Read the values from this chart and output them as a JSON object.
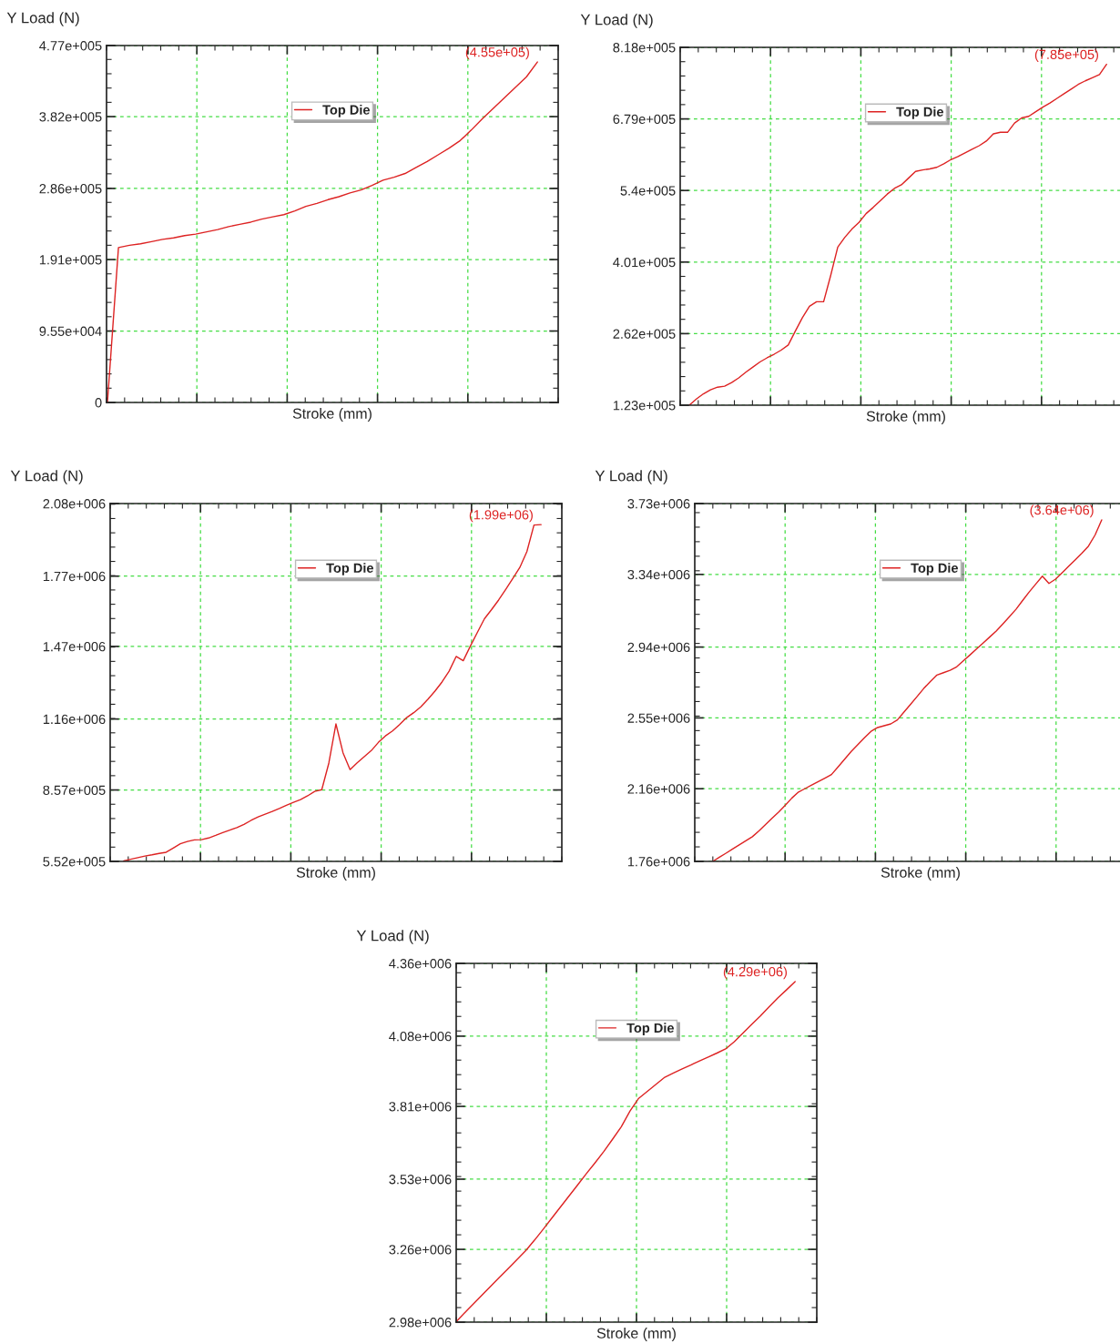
{
  "chart_data": [
    {
      "type": "line",
      "xlabel": "Stroke (mm)",
      "ylabel": "Y Load (N)",
      "categories": [
        null,
        null,
        null,
        null,
        null,
        null,
        null,
        null,
        null,
        null,
        null,
        null,
        null,
        null,
        null,
        null,
        null,
        null,
        null,
        null,
        null,
        null,
        null,
        null,
        null,
        null,
        null,
        null,
        null,
        null,
        null,
        null,
        null,
        null,
        null,
        null,
        null,
        null,
        null,
        null
      ],
      "series": [
        {
          "name": "Top Die",
          "color": "#dd2222",
          "values": [
            0,
            207000,
            210000,
            212000,
            215000,
            218000,
            220000,
            223000,
            225000,
            228000,
            231000,
            235000,
            238000,
            241000,
            245000,
            248000,
            251000,
            256000,
            262000,
            266000,
            271000,
            275000,
            280000,
            284000,
            290000,
            297000,
            301000,
            306000,
            314000,
            322000,
            331000,
            340000,
            350000,
            364000,
            379000,
            393000,
            407000,
            421000,
            435000,
            455000
          ]
        }
      ],
      "ylim": [
        0,
        477000
      ],
      "yticks": [
        0,
        {
          "value": 95500,
          "label": "9.55e+004"
        },
        {
          "value": 191000,
          "label": "1.91e+005"
        },
        {
          "value": 286000,
          "label": "2.86e+005"
        },
        {
          "value": 382000,
          "label": "3.82e+005"
        },
        {
          "value": 477000,
          "label": "4.77e+005"
        }
      ],
      "grid": true,
      "legend": "top",
      "tick_labels": "y",
      "annotations": [
        "(4.55e+05)"
      ]
    },
    {
      "type": "line",
      "xlabel": "Stroke (mm)",
      "ylabel": "Y Load (N)",
      "categories": [
        null,
        null,
        null,
        null,
        null,
        null,
        null,
        null,
        null,
        null,
        null,
        null,
        null,
        null,
        null,
        null,
        null,
        null,
        null,
        null,
        null,
        null,
        null,
        null,
        null,
        null,
        null,
        null,
        null,
        null,
        null,
        null,
        null,
        null,
        null,
        null,
        null,
        null,
        null,
        null,
        null,
        null,
        null,
        null,
        null,
        null,
        null,
        null,
        null,
        null,
        null,
        null,
        null,
        null,
        null,
        null,
        null,
        null,
        null,
        null
      ],
      "series": [
        {
          "name": "Top Die",
          "color": "#dd2222",
          "values": [
            123000,
            135000,
            145000,
            153000,
            158000,
            160000,
            167000,
            176000,
            187000,
            197000,
            207000,
            215000,
            222000,
            230000,
            240000,
            267000,
            293000,
            315000,
            324000,
            324000,
            375000,
            430000,
            449000,
            465000,
            478000,
            495000,
            507000,
            520000,
            533000,
            544000,
            551000,
            564000,
            577000,
            580000,
            582000,
            585000,
            592000,
            600000,
            606000,
            613000,
            620000,
            627000,
            636000,
            650000,
            653000,
            653000,
            671000,
            681000,
            684000,
            693000,
            702000,
            710000,
            719000,
            728000,
            737000,
            746000,
            753000,
            759000,
            765000,
            785000
          ]
        }
      ],
      "ylim": [
        123000,
        818000
      ],
      "yticks": [
        {
          "value": 123000,
          "label": "1.23e+005"
        },
        {
          "value": 262000,
          "label": "2.62e+005"
        },
        {
          "value": 401000,
          "label": "4.01e+005"
        },
        {
          "value": 540000,
          "label": "5.4e+005"
        },
        {
          "value": 679000,
          "label": "6.79e+005"
        },
        {
          "value": 818000,
          "label": "8.18e+005"
        }
      ],
      "grid": true,
      "legend": "top",
      "tick_labels": "y",
      "annotations": [
        "(7.85e+05)"
      ]
    },
    {
      "type": "line",
      "xlabel": "Stroke (mm)",
      "ylabel": "Y Load (N)",
      "categories": [
        null,
        null,
        null,
        null,
        null,
        null,
        null,
        null,
        null,
        null,
        null,
        null,
        null,
        null,
        null,
        null,
        null,
        null,
        null,
        null,
        null,
        null,
        null,
        null,
        null,
        null,
        null,
        null,
        null,
        null,
        null,
        null,
        null,
        null,
        null,
        null,
        null,
        null,
        null,
        null,
        null,
        null,
        null,
        null,
        null,
        null,
        null,
        null,
        null,
        null,
        null,
        null,
        null,
        null,
        null,
        null,
        null,
        null,
        null,
        null
      ],
      "series": [
        {
          "name": "Top Die",
          "color": "#dd2222",
          "values": [
            554000,
            561000,
            568000,
            575000,
            580000,
            586000,
            591000,
            609000,
            627000,
            637000,
            644000,
            645000,
            652000,
            663000,
            675000,
            686000,
            696000,
            710000,
            727000,
            742000,
            754000,
            765000,
            778000,
            792000,
            804000,
            816000,
            832000,
            851000,
            858000,
            972000,
            1139000,
            1016000,
            944000,
            973000,
            999000,
            1025000,
            1060000,
            1088000,
            1109000,
            1136000,
            1166000,
            1187000,
            1212000,
            1244000,
            1279000,
            1318000,
            1364000,
            1427000,
            1409000,
            1471000,
            1530000,
            1588000,
            1627000,
            1668000,
            1713000,
            1760000,
            1807000,
            1875000,
            1988000,
            1990000
          ]
        }
      ],
      "ylim": [
        552000,
        2080000
      ],
      "yticks": [
        {
          "value": 552000,
          "label": "5.52e+005"
        },
        {
          "value": 857000,
          "label": "8.57e+005"
        },
        {
          "value": 1160000,
          "label": "1.16e+006"
        },
        {
          "value": 1470000,
          "label": "1.47e+006"
        },
        {
          "value": 1770000,
          "label": "1.77e+006"
        },
        {
          "value": 2080000,
          "label": "2.08e+006"
        }
      ],
      "grid": true,
      "legend": "top",
      "tick_labels": "y",
      "annotations": [
        "(1.99e+06)"
      ]
    },
    {
      "type": "line",
      "xlabel": "Stroke (mm)",
      "ylabel": "Y Load (N)",
      "categories": [
        null,
        null,
        null,
        null,
        null,
        null,
        null,
        null,
        null,
        null,
        null,
        null,
        null,
        null,
        null,
        null,
        null,
        null,
        null,
        null,
        null,
        null,
        null,
        null,
        null,
        null,
        null,
        null,
        null,
        null,
        null,
        null,
        null,
        null,
        null,
        null,
        null,
        null,
        null,
        null,
        null,
        null,
        null,
        null,
        null,
        null,
        null,
        null,
        null,
        null,
        null,
        null,
        null,
        null,
        null,
        null,
        null,
        null,
        null,
        null
      ],
      "series": [
        {
          "name": "Top Die",
          "color": "#dd2222",
          "values": [
            1760000,
            1783000,
            1805000,
            1828000,
            1851000,
            1873000,
            1896000,
            1928000,
            1963000,
            1998000,
            2032000,
            2070000,
            2109000,
            2142000,
            2161000,
            2180000,
            2199000,
            2218000,
            2238000,
            2280000,
            2323000,
            2365000,
            2403000,
            2440000,
            2476000,
            2497000,
            2507000,
            2517000,
            2539000,
            2582000,
            2625000,
            2668000,
            2712000,
            2750000,
            2786000,
            2799000,
            2812000,
            2831000,
            2864000,
            2896000,
            2929000,
            2962000,
            2995000,
            3028000,
            3067000,
            3107000,
            3148000,
            3196000,
            3243000,
            3287000,
            3330000,
            3290000,
            3314000,
            3349000,
            3385000,
            3421000,
            3457000,
            3496000,
            3557000,
            3640000
          ]
        }
      ],
      "ylim": [
        1760000,
        3730000
      ],
      "yticks": [
        {
          "value": 1760000,
          "label": "1.76e+006"
        },
        {
          "value": 2160000,
          "label": "2.16e+006"
        },
        {
          "value": 2550000,
          "label": "2.55e+006"
        },
        {
          "value": 2940000,
          "label": "2.94e+006"
        },
        {
          "value": 3340000,
          "label": "3.34e+006"
        },
        {
          "value": 3730000,
          "label": "3.73e+006"
        }
      ],
      "grid": true,
      "legend": "top",
      "tick_labels": "y",
      "annotations": [
        "(3.64e+06)"
      ]
    },
    {
      "type": "line",
      "xlabel": "Stroke (mm)",
      "ylabel": "Y Load (N)",
      "categories": [
        null,
        null,
        null,
        null,
        null,
        null,
        null,
        null,
        null,
        null,
        null,
        null,
        null,
        null,
        null,
        null,
        null,
        null,
        null,
        null,
        null,
        null,
        null,
        null,
        null,
        null,
        null,
        null,
        null,
        null,
        null,
        null,
        null,
        null,
        null,
        null,
        null,
        null,
        null,
        null
      ],
      "series": [
        {
          "name": "Top Die",
          "color": "#dd2222",
          "values": [
            2982000,
            3017000,
            3051000,
            3085000,
            3119000,
            3153000,
            3187000,
            3221000,
            3255000,
            3295000,
            3337000,
            3380000,
            3423000,
            3466000,
            3509000,
            3552000,
            3594000,
            3637000,
            3684000,
            3732000,
            3792000,
            3841000,
            3868000,
            3895000,
            3922000,
            3938000,
            3954000,
            3969000,
            3985000,
            4000000,
            4015000,
            4031000,
            4059000,
            4092000,
            4125000,
            4158000,
            4193000,
            4227000,
            4258000,
            4290000
          ]
        }
      ],
      "ylim": [
        2980000,
        4360000
      ],
      "yticks": [
        {
          "value": 2980000,
          "label": "2.98e+006"
        },
        {
          "value": 3260000,
          "label": "3.26e+006"
        },
        {
          "value": 3530000,
          "label": "3.53e+006"
        },
        {
          "value": 3810000,
          "label": "3.81e+006"
        },
        {
          "value": 4080000,
          "label": "4.08e+006"
        },
        {
          "value": 4360000,
          "label": "4.36e+006"
        }
      ],
      "grid": true,
      "legend": "top",
      "tick_labels": "y",
      "annotations": [
        "(4.29e+06)"
      ]
    }
  ]
}
